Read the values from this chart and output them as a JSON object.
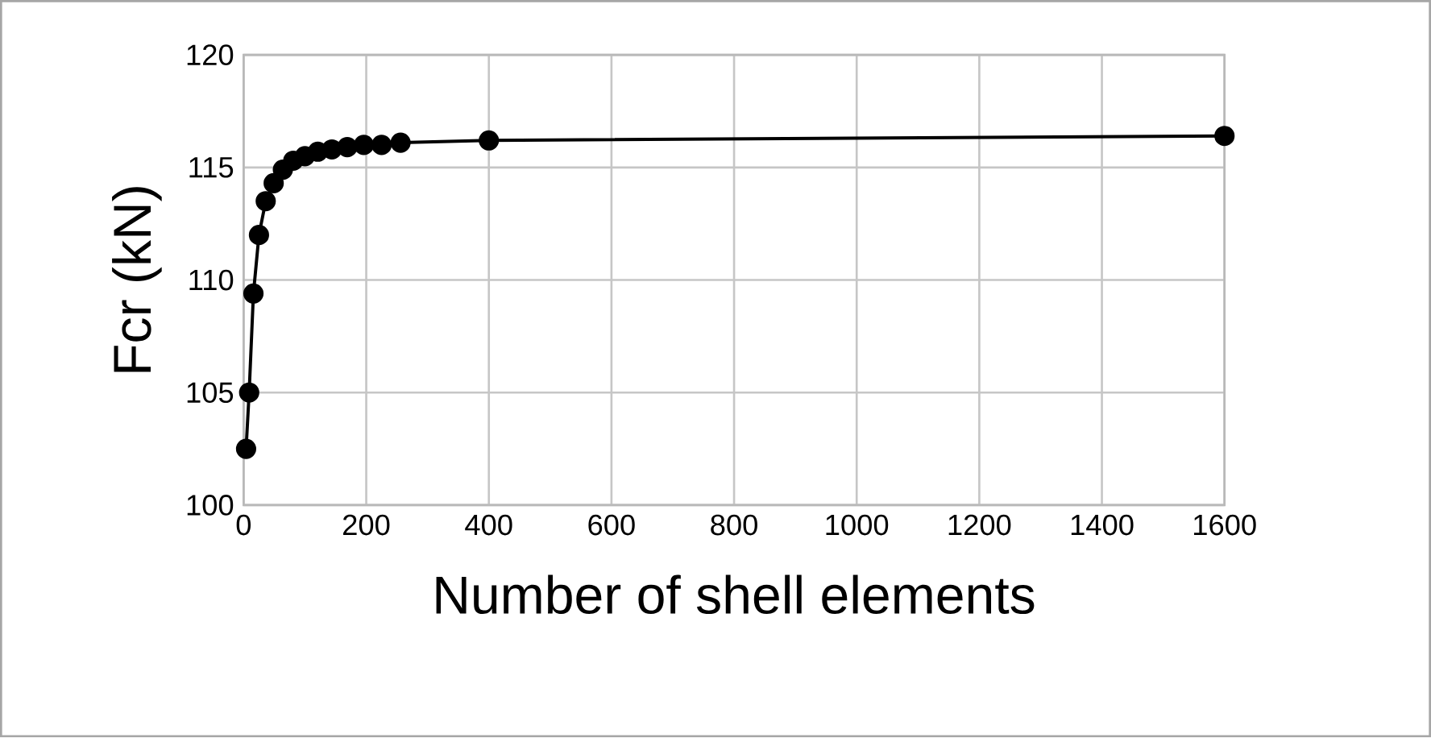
{
  "chart_data": {
    "type": "line",
    "xlabel": "Number of shell elements",
    "ylabel": "Fcr (kN)",
    "x": [
      4,
      9,
      16,
      25,
      36,
      49,
      64,
      81,
      100,
      121,
      144,
      169,
      196,
      225,
      256,
      400,
      1600
    ],
    "values": [
      102.5,
      105,
      109.4,
      112,
      113.5,
      114.3,
      114.9,
      115.3,
      115.5,
      115.7,
      115.8,
      115.9,
      116,
      116,
      116.1,
      116.2,
      116.4
    ],
    "color": "#000000",
    "marker": "circle",
    "line_style": "solid",
    "xlim": [
      0,
      1600
    ],
    "xticks": [
      0,
      200,
      400,
      600,
      800,
      1000,
      1200,
      1400,
      1600
    ],
    "ylim": [
      100,
      120
    ],
    "yticks": [
      100,
      105,
      110,
      115,
      120
    ],
    "grid": true
  }
}
